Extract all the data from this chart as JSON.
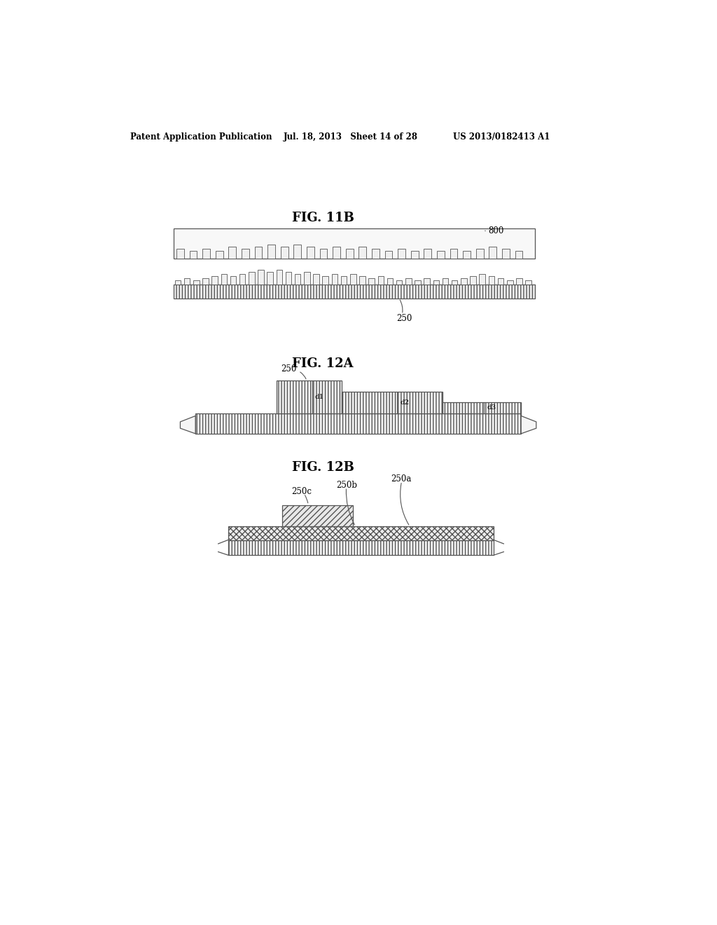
{
  "bg_color": "#ffffff",
  "header_left": "Patent Application Publication",
  "header_mid": "Jul. 18, 2013   Sheet 14 of 28",
  "header_right": "US 2013/0182413 A1",
  "fig11b_title": "FIG. 11B",
  "fig12a_title": "FIG. 12A",
  "fig12b_title": "FIG. 12B",
  "label_800": "800",
  "label_250_11b": "250",
  "label_250_12a": "250",
  "label_d1": "d1",
  "label_d2": "d2",
  "label_d3": "d3",
  "label_250a": "250a",
  "label_250b": "250b",
  "label_250c": "250c"
}
